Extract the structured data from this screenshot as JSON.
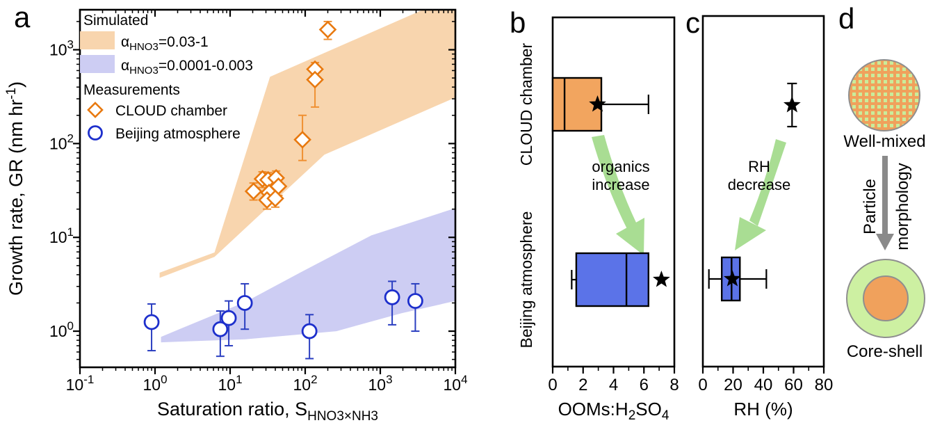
{
  "panels": {
    "a": {
      "label": "a",
      "legend": {
        "simulated_header": "Simulated",
        "measurements_header": "Measurements",
        "band_entries": [
          {
            "parts": [
              {
                "t": "α"
              },
              {
                "sub": "HNO3"
              },
              {
                "t": "=0.03-1"
              }
            ],
            "color": "#f8d5ae"
          },
          {
            "parts": [
              {
                "t": "α"
              },
              {
                "sub": "HNO3"
              },
              {
                "t": "=0.0001-0.003"
              }
            ],
            "color": "#cdcdf3"
          }
        ],
        "marker_entries": [
          {
            "label": "CLOUD chamber",
            "marker": "diamond",
            "color": "#e8790f"
          },
          {
            "label": "Beijing atmosphere",
            "marker": "circle",
            "color": "#1d2fcc"
          }
        ]
      },
      "x_label_parts": [
        {
          "t": "Saturation ratio, S"
        },
        {
          "sub": "HNO3×NH3"
        }
      ],
      "y_label_parts": [
        {
          "t": "Growth rate, GR (nm hr"
        },
        {
          "sup": "-1"
        },
        {
          "t": ")"
        }
      ]
    },
    "b": {
      "label": "b",
      "categories": [
        "CLOUD chamber",
        "Beijing atmosphere"
      ],
      "x_label_parts": [
        {
          "t": "OOMs:H"
        },
        {
          "sub": "2"
        },
        {
          "t": "SO"
        },
        {
          "sub": "4"
        }
      ],
      "annotation_lines": [
        "organics",
        "increase"
      ],
      "arrow_color": "#a9dd93"
    },
    "c": {
      "label": "c",
      "x_label_parts": [
        {
          "t": "RH (%)"
        }
      ],
      "annotation_lines": [
        "RH",
        "decrease"
      ],
      "arrow_color": "#a9dd93"
    },
    "d": {
      "label": "d",
      "well_mixed_caption": "Well-mixed",
      "core_shell_caption": "Core-shell",
      "arrow_label": [
        "Particle",
        "morphology"
      ],
      "colors": {
        "particle_orange": "#f0a15c",
        "particle_green": "#c9ec9b",
        "shell_green": "#cdf0a2",
        "outline_gray": "#8f8f8f",
        "arrow_gray": "#8a8a8a"
      }
    }
  },
  "chart_data": [
    {
      "id": "a",
      "type": "scatter",
      "x_scale": "log",
      "y_scale": "log",
      "xlabel": "Saturation ratio, S_HNO3×NH3",
      "ylabel": "Growth rate, GR (nm hr^-1)",
      "xlim": [
        0.1,
        10000
      ],
      "ylim": [
        0.412,
        2670
      ],
      "x_tick_exponents": [
        -1,
        0,
        1,
        2,
        3,
        4
      ],
      "y_tick_exponents": [
        0,
        1,
        2,
        3
      ],
      "bands": [
        {
          "name": "alpha_HNO3 = 0.03-1",
          "color": "#f8d5ae",
          "polygon": [
            [
              1.15,
              4.2
            ],
            [
              6.2,
              6.9
            ],
            [
              34,
              515
            ],
            [
              3700,
              2670
            ],
            [
              10000,
              2670
            ],
            [
              10000,
              310
            ],
            [
              180,
              76
            ],
            [
              6.2,
              6.2
            ],
            [
              1.15,
              3.7
            ]
          ]
        },
        {
          "name": "alpha_HNO3 = 0.0001-0.003",
          "color": "#cdcdf3",
          "polygon": [
            [
              1.2,
              0.87
            ],
            [
              16,
              2.05
            ],
            [
              90,
              4.3
            ],
            [
              760,
              10.5
            ],
            [
              10000,
              20.5
            ],
            [
              10000,
              2.1
            ],
            [
              1900,
              1.55
            ],
            [
              260,
              1.0
            ],
            [
              16,
              0.82
            ],
            [
              1.2,
              0.76
            ]
          ]
        }
      ],
      "series": [
        {
          "name": "CLOUD chamber",
          "marker": "diamond",
          "color": "#e8790f",
          "err_color": "#ef9032",
          "points": [
            [
              200,
              1640,
              1290,
              2000
            ],
            [
              135,
              620,
              450,
              730
            ],
            [
              135,
              480,
              245,
              560
            ],
            [
              92,
              110,
              66,
              200
            ],
            [
              20.5,
              31,
              25,
              38
            ],
            [
              27,
              42,
              34,
              50
            ],
            [
              32,
              41,
              33,
              49
            ],
            [
              41,
              43,
              35,
              51
            ],
            [
              44,
              35,
              28,
              42
            ],
            [
              33,
              30,
              24,
              36
            ],
            [
              31,
              25,
              20,
              30
            ],
            [
              40,
              26,
              21,
              31
            ]
          ]
        },
        {
          "name": "Beijing atmosphere",
          "marker": "circle",
          "color": "#1d2fcc",
          "err_color": "#2a3ec0",
          "points": [
            [
              0.9,
              1.25,
              0.62,
              1.95
            ],
            [
              7.4,
              1.05,
              0.54,
              1.64
            ],
            [
              9.6,
              1.38,
              0.7,
              2.1
            ],
            [
              15.7,
              2.0,
              1.05,
              3.2
            ],
            [
              114,
              1.0,
              0.51,
              1.5
            ],
            [
              1440,
              2.3,
              1.17,
              3.4
            ],
            [
              2930,
              2.1,
              1.0,
              3.2
            ]
          ]
        }
      ]
    },
    {
      "id": "b",
      "type": "boxplot",
      "orientation": "horizontal",
      "xlabel": "OOMs:H2SO4",
      "xlim": [
        0,
        8
      ],
      "x_major_ticks": [
        0,
        2,
        4,
        6,
        8
      ],
      "x_minor_ticks": [
        1,
        3,
        5,
        7
      ],
      "rows": [
        {
          "category": "CLOUD chamber",
          "box_color": "#f2a55f",
          "q1": 0,
          "median": 0.78,
          "q3": 3.2,
          "whisker_high": 6.3,
          "mean_star": 2.95
        },
        {
          "category": "Beijing atmosphere",
          "box_color": "#5b73e8",
          "q1": 1.55,
          "median": 4.85,
          "q3": 6.3,
          "whisker_low": 1.25,
          "mean_star": 7.15
        }
      ],
      "annotation": "organics increase"
    },
    {
      "id": "c",
      "type": "boxplot",
      "orientation": "horizontal",
      "xlabel": "RH (%)",
      "xlim": [
        0,
        80
      ],
      "x_major_ticks": [
        0,
        20,
        40,
        60,
        80
      ],
      "x_minor_ticks": [
        10,
        30,
        50,
        70
      ],
      "rows": [
        {
          "category": "CLOUD chamber",
          "mean_star": 59,
          "star_error_bar": "vertical"
        },
        {
          "category": "Beijing atmosphere",
          "box_color": "#5b73e8",
          "q1": 12.5,
          "median": 19,
          "q3": 24.5,
          "whisker_low": 4,
          "whisker_high": 42,
          "mean_star": 19.5
        }
      ],
      "annotation": "RH decrease"
    }
  ]
}
